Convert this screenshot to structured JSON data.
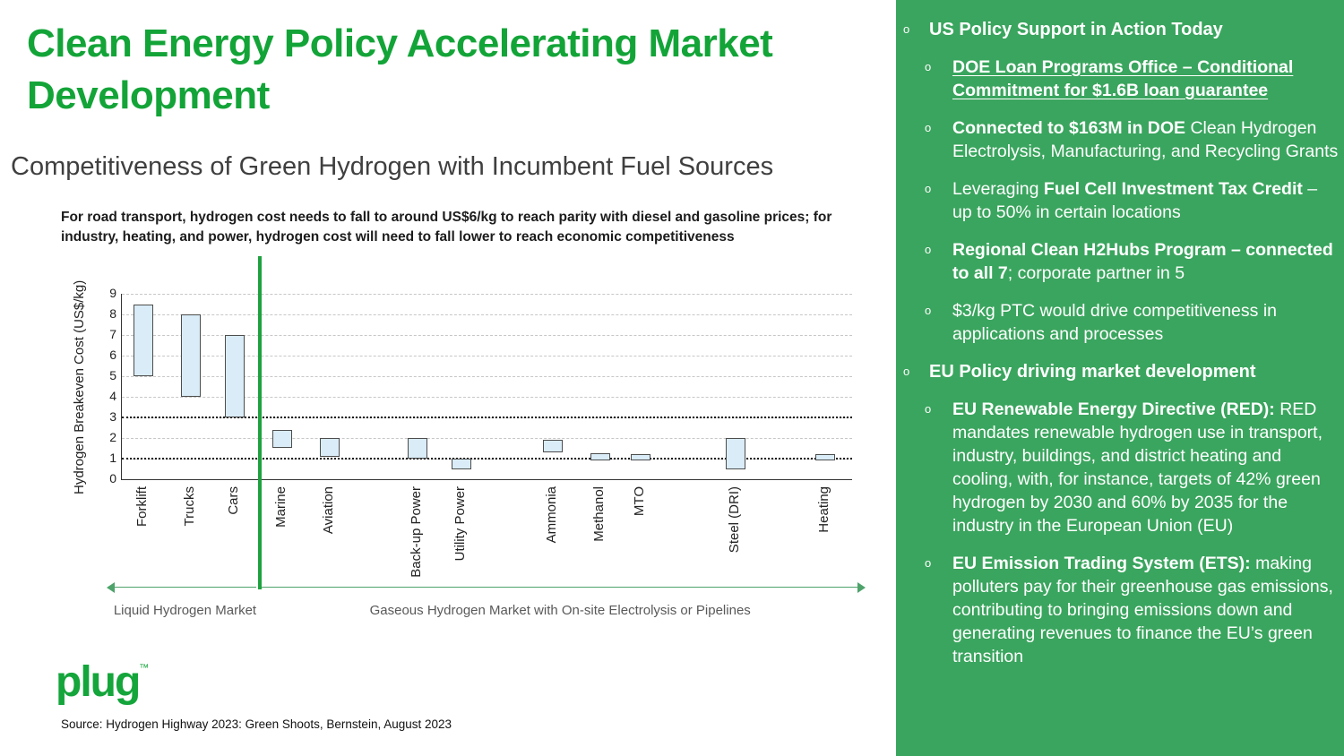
{
  "header": {
    "title_line1": "Clean Energy Policy Accelerating Market",
    "title_line2": "Development",
    "subtitle": "Competitiveness of Green Hydrogen with Incumbent Fuel Sources"
  },
  "brand": {
    "logo_text": "plug",
    "tm": "™"
  },
  "source_note": "Source: Hydrogen Highway 2023: Green Shoots, Bernstein, August 2023",
  "colors": {
    "title_green": "#13a438",
    "panel_green": "#3aa55e",
    "divider_green": "#1fa13f",
    "bar_fill": "#d9ecf7",
    "bar_border": "#4d4d4d",
    "arrow_green": "#4ea36b"
  },
  "chart_data": {
    "type": "bar",
    "subtype": "floating-range-bars",
    "title": "For road transport, hydrogen cost needs to fall to around US$6/kg to reach parity with diesel and gasoline prices; for industry, heating, and power, hydrogen cost will need to fall lower to reach economic competitiveness",
    "ylabel": "Hydrogen Breakeven Cost (US$/kg)",
    "xlabel": "",
    "ylim": [
      0,
      9
    ],
    "yticks": [
      0,
      1,
      2,
      3,
      4,
      5,
      6,
      7,
      8,
      9
    ],
    "grid": true,
    "threshold_lines": [
      3,
      1
    ],
    "categories": [
      "Forklift",
      "Trucks",
      "Cars",
      "Marine",
      "Aviation",
      "Back-up Power",
      "Utility Power",
      "Ammonia",
      "Methanol",
      "MTO",
      "Steel (DRI)",
      "Heating"
    ],
    "bars": [
      {
        "label": "Forklift",
        "low": 5.0,
        "high": 8.5,
        "x": 0.03
      },
      {
        "label": "Trucks",
        "low": 4.0,
        "high": 8.0,
        "x": 0.095
      },
      {
        "label": "Cars",
        "low": 3.0,
        "high": 7.0,
        "x": 0.155
      },
      {
        "label": "Marine",
        "low": 1.5,
        "high": 2.4,
        "x": 0.22
      },
      {
        "label": "Aviation",
        "low": 1.1,
        "high": 2.0,
        "x": 0.285
      },
      {
        "label": "Back-up Power",
        "low": 1.0,
        "high": 2.0,
        "x": 0.405
      },
      {
        "label": "Utility Power",
        "low": 0.5,
        "high": 1.0,
        "x": 0.465
      },
      {
        "label": "Ammonia",
        "low": 1.3,
        "high": 1.9,
        "x": 0.59
      },
      {
        "label": "Methanol",
        "low": 0.9,
        "high": 1.25,
        "x": 0.655
      },
      {
        "label": "MTO",
        "low": 0.9,
        "high": 1.2,
        "x": 0.71
      },
      {
        "label": "Steel (DRI)",
        "low": 0.5,
        "high": 2.0,
        "x": 0.84
      },
      {
        "label": "Heating",
        "low": 0.9,
        "high": 1.2,
        "x": 0.963
      }
    ],
    "divider_x": 0.19,
    "arrows": [
      {
        "label": "Liquid Hydrogen Market",
        "from": -0.01,
        "to": 0.185,
        "direction": "left"
      },
      {
        "label": "Gaseous Hydrogen Market with On-site Electrolysis or Pipelines",
        "from": 0.193,
        "to": 1.01,
        "direction": "right"
      }
    ]
  },
  "right_panel": {
    "bullet_char": "o",
    "bullets": [
      {
        "level": 1,
        "segments": [
          {
            "text": "US Policy Support in Action Today",
            "bold": true
          }
        ]
      },
      {
        "level": 2,
        "segments": [
          {
            "text": "DOE Loan Programs Office – Conditional Commitment for $1.6B loan guarantee",
            "bold": true,
            "underline": true
          }
        ]
      },
      {
        "level": 2,
        "segments": [
          {
            "text": "Connected to $163M in DOE ",
            "bold": true
          },
          {
            "text": "Clean Hydrogen Electrolysis, Manufacturing, and Recycling Grants"
          }
        ]
      },
      {
        "level": 2,
        "segments": [
          {
            "text": "Leveraging "
          },
          {
            "text": "Fuel Cell Investment Tax Credit",
            "bold": true
          },
          {
            "text": " – up to 50% in certain locations"
          }
        ]
      },
      {
        "level": 2,
        "segments": [
          {
            "text": "Regional Clean H2Hubs Program – connected to all 7",
            "bold": true
          },
          {
            "text": "; corporate partner in 5"
          }
        ]
      },
      {
        "level": 2,
        "segments": [
          {
            "text": "$3/kg PTC would drive competitiveness in applications and processes"
          }
        ]
      },
      {
        "level": 1,
        "segments": [
          {
            "text": "EU Policy driving market development",
            "bold": true
          }
        ]
      },
      {
        "level": 2,
        "segments": [
          {
            "text": "EU Renewable Energy Directive (RED):",
            "bold": true
          },
          {
            "text": " RED mandates renewable hydrogen use in transport, industry, buildings, and district heating and cooling, with, for instance, targets of 42% green hydrogen by 2030 and 60% by 2035 for the industry in the European Union (EU)"
          }
        ]
      },
      {
        "level": 2,
        "segments": [
          {
            "text": "EU Emission Trading System (ETS):",
            "bold": true
          },
          {
            "text": " making polluters pay for their greenhouse gas emissions, contributing to bringing emissions down and generating revenues to finance the EU’s green transition"
          }
        ]
      }
    ]
  }
}
